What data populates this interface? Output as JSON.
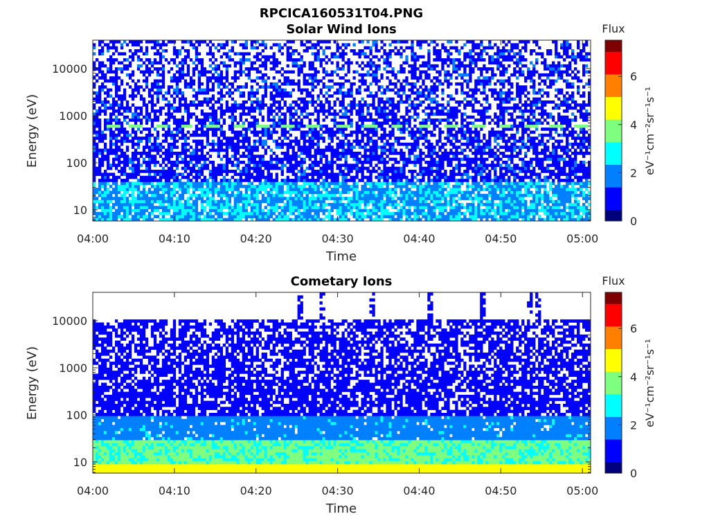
{
  "figure_title": "RPCICA160531T04.PNG",
  "colormap": [
    "#00007f",
    "#0000ff",
    "#007fff",
    "#00ffff",
    "#7fff7f",
    "#ffff00",
    "#ff7f00",
    "#ff0000",
    "#7f0000"
  ],
  "chart_data": [
    {
      "type": "heatmap",
      "title": "Solar Wind Ions",
      "xlabel": "Time",
      "ylabel": "Energy (eV)",
      "x_ticks": [
        "04:00",
        "04:10",
        "04:20",
        "04:30",
        "04:40",
        "04:50",
        "05:00"
      ],
      "x_range_minutes": [
        0,
        61
      ],
      "y_scale": "log",
      "y_ticks": [
        "10",
        "100",
        "1000",
        "10000"
      ],
      "y_range": [
        5.8,
        40000
      ],
      "colorbar": {
        "title": "Flux",
        "label": "eV⁻¹cm⁻²sr⁻¹s⁻¹",
        "ticks": [
          "0",
          "2",
          "4",
          "6"
        ],
        "range": [
          0,
          7.5
        ]
      },
      "features": {
        "background_flux": 0.9,
        "low_energy_band": {
          "energy_max_eV": 40,
          "flux": 2.0
        },
        "solar_wind_peak": {
          "energy_eV": 620,
          "flux": 3.6,
          "times_minutes": [
            2.5,
            5.2,
            8.5,
            11.5,
            14.8,
            18,
            20.8,
            23.8,
            27,
            30.7,
            34,
            37.3,
            40.7,
            44,
            47.2,
            50.5,
            53.7,
            56.7,
            59.8
          ]
        }
      }
    },
    {
      "type": "heatmap",
      "title": "Cometary Ions",
      "xlabel": "Time",
      "ylabel": "Energy (eV)",
      "x_ticks": [
        "04:00",
        "04:10",
        "04:20",
        "04:30",
        "04:40",
        "04:50",
        "05:00"
      ],
      "x_range_minutes": [
        0,
        61
      ],
      "y_scale": "log",
      "y_ticks": [
        "10",
        "100",
        "1000",
        "10000"
      ],
      "y_range": [
        5.8,
        40000
      ],
      "colorbar": {
        "title": "Flux",
        "label": "eV⁻¹cm⁻²sr⁻¹s⁻¹",
        "ticks": [
          "0",
          "2",
          "4",
          "6"
        ],
        "range": [
          0,
          7.5
        ]
      },
      "features": {
        "background_flux": 0.8,
        "energy_cutoff_eV": 11000,
        "high_energy_spikes_minutes": [
          25.5,
          28.2,
          34.2,
          41.5,
          47.8,
          53.5,
          54.5
        ],
        "low_energy_band": {
          "energy_max_eV": 30,
          "flux": 3.0
        },
        "lowest_energy_flux": 4.4
      }
    }
  ]
}
